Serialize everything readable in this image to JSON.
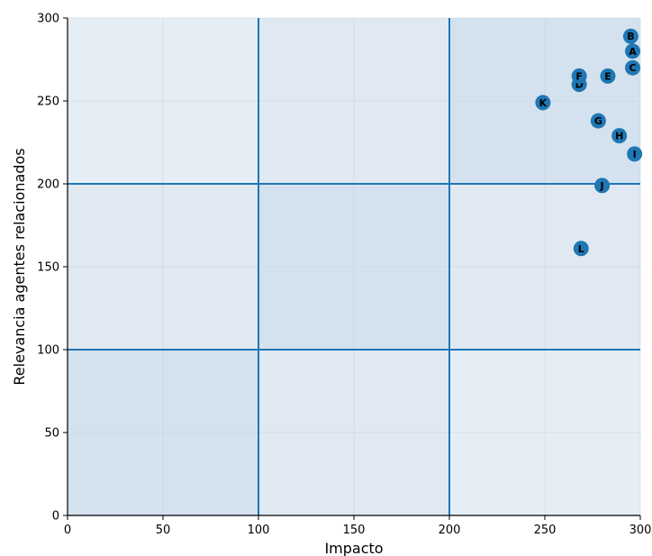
{
  "chart_data": {
    "type": "scatter",
    "title": "",
    "xlabel": "Impacto",
    "ylabel": "Relevancia agentes relacionados",
    "xlim": [
      0,
      300
    ],
    "ylim": [
      0,
      300
    ],
    "x_ticks": [
      0,
      50,
      100,
      150,
      200,
      250,
      300
    ],
    "y_ticks": [
      0,
      50,
      100,
      150,
      200,
      250,
      300
    ],
    "grid": true,
    "threshold_lines": {
      "x": [
        100,
        200
      ],
      "y": [
        100,
        200
      ]
    },
    "zone_shades": [
      [
        0.3,
        0.15,
        0.05
      ],
      [
        0.15,
        0.3,
        0.15
      ],
      [
        0.05,
        0.15,
        0.3
      ]
    ],
    "colors": {
      "point": "#1f77b4",
      "threshold_line": "#1f77b4",
      "zone": "#1f6fb4",
      "background": "#eaf0f6"
    },
    "points": [
      {
        "label": "A",
        "x": 296,
        "y": 280
      },
      {
        "label": "B",
        "x": 295,
        "y": 289
      },
      {
        "label": "C",
        "x": 296,
        "y": 270
      },
      {
        "label": "D",
        "x": 268,
        "y": 260
      },
      {
        "label": "E",
        "x": 283,
        "y": 265
      },
      {
        "label": "F",
        "x": 268,
        "y": 265
      },
      {
        "label": "G",
        "x": 278,
        "y": 238
      },
      {
        "label": "H",
        "x": 289,
        "y": 229
      },
      {
        "label": "I",
        "x": 297,
        "y": 218
      },
      {
        "label": "J",
        "x": 280,
        "y": 199
      },
      {
        "label": "K",
        "x": 249,
        "y": 249
      },
      {
        "label": "L",
        "x": 269,
        "y": 161
      }
    ]
  }
}
